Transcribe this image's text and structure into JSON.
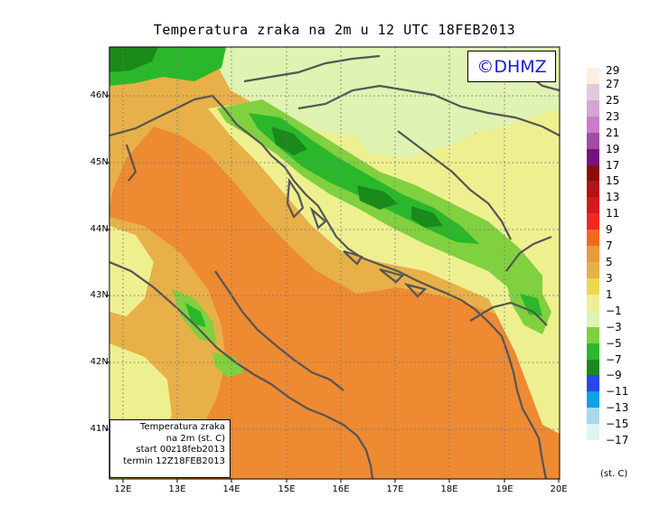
{
  "title": "Temperatura zraka na 2m u 12 UTC 18FEB2013",
  "logo_text": "©DHMZ",
  "info_box": {
    "line1": "Temperatura zraka",
    "line2": "na 2m (st. C)",
    "line3": "start 00z18feb2013",
    "line4": "termin 12Z18FEB2013"
  },
  "lat_labels": [
    "46N",
    "45N",
    "44N",
    "43N",
    "42N",
    "41N"
  ],
  "lon_labels": [
    "12E",
    "13E",
    "14E",
    "15E",
    "16E",
    "17E",
    "18E",
    "19E",
    "20E"
  ],
  "legend": {
    "unit": "(st. C)",
    "labels": [
      "29",
      "27",
      "25",
      "23",
      "21",
      "19",
      "17",
      "15",
      "13",
      "11",
      "9",
      "7",
      "5",
      "3",
      "1",
      "−1",
      "−3",
      "−5",
      "−7",
      "−9",
      "−11",
      "−13",
      "−15",
      "−17"
    ],
    "colors": [
      "#fdeee0",
      "#e3c9df",
      "#d4a6d4",
      "#c77dc7",
      "#a34aa3",
      "#7a1080",
      "#8c0c0c",
      "#b01414",
      "#d41a1a",
      "#f02a1e",
      "#f06a1e",
      "#e89a3a",
      "#e8b048",
      "#ecd850",
      "#eef090",
      "#dff3b2",
      "#80d040",
      "#2ab82a",
      "#1a8a1a",
      "#2848e8",
      "#10a0e8",
      "#a8d8f0",
      "#dcf6f6",
      "#ffffff"
    ]
  },
  "colors": {
    "sea_warm": "#ee8a32",
    "coast_warm": "#e8b048",
    "hills": "#eef090",
    "lowland": "#dff3b2",
    "mountain_cold": "#2ab82a",
    "mountain_colder": "#1a8a1a",
    "coastline": "#555555"
  }
}
